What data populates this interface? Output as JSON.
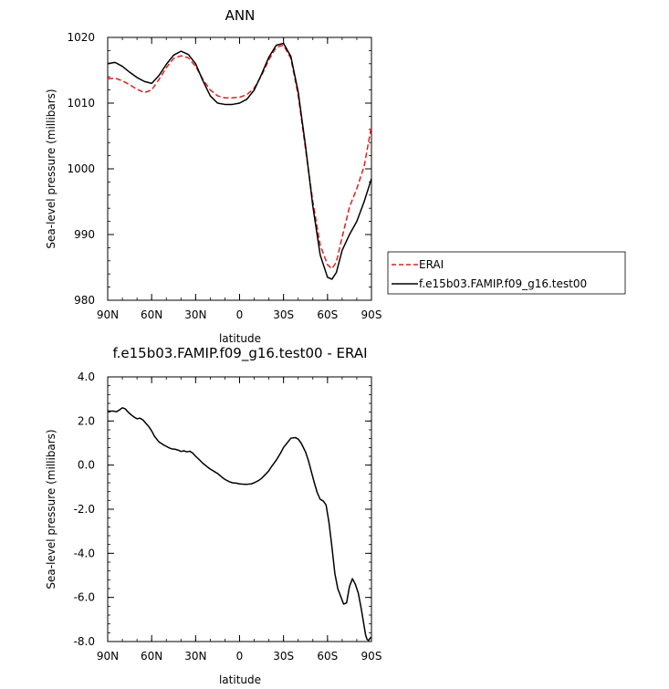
{
  "chart_data": [
    {
      "type": "line",
      "title": "ANN",
      "xlabel": "latitude",
      "ylabel": "Sea-level pressure (millibars)",
      "xlim": [
        90,
        -90
      ],
      "ylim": [
        980,
        1020
      ],
      "x_ticks": [
        90,
        60,
        30,
        0,
        -30,
        -60,
        -90
      ],
      "x_tick_labels": [
        "90N",
        "60N",
        "30N",
        "0",
        "30S",
        "60S",
        "90S"
      ],
      "y_ticks": [
        980,
        990,
        1000,
        1010,
        1020
      ],
      "y_tick_labels": [
        "980",
        "990",
        "1000",
        "1010",
        "1020"
      ],
      "legend_position": "right, outside plot",
      "series": [
        {
          "name": "ERAI",
          "color": "#e0201c",
          "dash": "dashed",
          "x": [
            90,
            85,
            80,
            75,
            70,
            65,
            60,
            55,
            50,
            45,
            40,
            35,
            30,
            25,
            20,
            15,
            10,
            5,
            0,
            -5,
            -10,
            -15,
            -20,
            -25,
            -30,
            -35,
            -40,
            -45,
            -50,
            -55,
            -60,
            -63,
            -66,
            -70,
            -75,
            -80,
            -85,
            -90
          ],
          "y": [
            1013.7,
            1013.8,
            1013.4,
            1012.8,
            1012.1,
            1011.6,
            1012.0,
            1013.6,
            1015.4,
            1016.8,
            1017.2,
            1016.9,
            1015.6,
            1013.6,
            1012.0,
            1011.1,
            1010.8,
            1010.8,
            1010.9,
            1011.3,
            1012.3,
            1014.2,
            1016.6,
            1018.5,
            1018.8,
            1016.8,
            1011.2,
            1003.0,
            995.0,
            988.4,
            985.4,
            984.8,
            985.8,
            989.6,
            994.2,
            997.0,
            1000.4,
            1006.5
          ]
        },
        {
          "name": "f.e15b03.FAMIP.f09_g16.test00",
          "color": "#000000",
          "dash": "solid",
          "x": [
            90,
            85,
            80,
            75,
            70,
            65,
            60,
            55,
            50,
            45,
            40,
            35,
            30,
            25,
            20,
            15,
            10,
            5,
            0,
            -5,
            -10,
            -15,
            -20,
            -25,
            -30,
            -35,
            -40,
            -45,
            -50,
            -55,
            -60,
            -63,
            -66,
            -70,
            -75,
            -80,
            -85,
            -90
          ],
          "y": [
            1016.0,
            1016.2,
            1015.6,
            1014.7,
            1013.9,
            1013.3,
            1013.0,
            1014.2,
            1015.9,
            1017.3,
            1017.9,
            1017.4,
            1016.0,
            1013.4,
            1011.1,
            1010.0,
            1009.8,
            1009.8,
            1010.0,
            1010.6,
            1012.0,
            1014.4,
            1017.0,
            1018.8,
            1019.1,
            1017.1,
            1011.7,
            1003.5,
            994.3,
            986.9,
            983.5,
            983.2,
            984.2,
            987.6,
            990.0,
            992.0,
            995.0,
            998.5
          ]
        }
      ]
    },
    {
      "type": "line",
      "title": "f.e15b03.FAMIP.f09_g16.test00 - ERAI",
      "xlabel": "latitude",
      "ylabel": "Sea-level pressure (millibars)",
      "xlim": [
        90,
        -90
      ],
      "ylim": [
        -8,
        4
      ],
      "x_ticks": [
        90,
        60,
        30,
        0,
        -30,
        -60,
        -90
      ],
      "x_tick_labels": [
        "90N",
        "60N",
        "30N",
        "0",
        "30S",
        "60S",
        "90S"
      ],
      "y_ticks": [
        -8,
        -6,
        -4,
        -2,
        0,
        2,
        4
      ],
      "y_tick_labels": [
        "-8.0",
        "-6.0",
        "-4.0",
        "-2.0",
        "0.0",
        "2.0",
        "4.0"
      ],
      "series": [
        {
          "color": "#000000",
          "dash": "solid",
          "x": [
            90,
            86,
            84,
            82,
            80,
            78,
            76,
            74,
            72,
            70,
            68,
            66,
            64,
            62,
            60,
            58,
            55,
            52,
            50,
            48,
            46,
            44,
            42,
            40,
            38,
            36,
            34,
            32,
            30,
            28,
            25,
            22,
            20,
            17,
            15,
            12,
            10,
            7,
            5,
            2,
            0,
            -2,
            -5,
            -8,
            -10,
            -13,
            -15,
            -18,
            -20,
            -22,
            -25,
            -28,
            -30,
            -33,
            -35,
            -38,
            -40,
            -42,
            -45,
            -47,
            -49,
            -51,
            -53,
            -55,
            -57,
            -59,
            -61,
            -63,
            -65,
            -67,
            -69,
            -71,
            -73,
            -75,
            -77,
            -79,
            -80,
            -81,
            -83,
            -85,
            -86,
            -87,
            -88,
            -89,
            -90
          ],
          "y": [
            2.45,
            2.45,
            2.42,
            2.5,
            2.6,
            2.55,
            2.4,
            2.28,
            2.18,
            2.1,
            2.13,
            2.05,
            1.9,
            1.75,
            1.55,
            1.3,
            1.05,
            0.92,
            0.85,
            0.78,
            0.73,
            0.72,
            0.68,
            0.62,
            0.65,
            0.6,
            0.63,
            0.55,
            0.4,
            0.28,
            0.08,
            -0.08,
            -0.18,
            -0.3,
            -0.38,
            -0.55,
            -0.65,
            -0.75,
            -0.8,
            -0.82,
            -0.85,
            -0.86,
            -0.87,
            -0.85,
            -0.8,
            -0.7,
            -0.6,
            -0.4,
            -0.25,
            -0.05,
            0.22,
            0.55,
            0.8,
            1.05,
            1.22,
            1.25,
            1.18,
            1.0,
            0.6,
            0.2,
            -0.3,
            -0.8,
            -1.25,
            -1.55,
            -1.62,
            -1.8,
            -2.6,
            -3.7,
            -4.9,
            -5.6,
            -5.95,
            -6.3,
            -6.25,
            -5.5,
            -5.15,
            -5.4,
            -5.6,
            -5.8,
            -6.5,
            -7.3,
            -7.7,
            -7.9,
            -7.95,
            -7.85,
            -7.8
          ]
        }
      ]
    }
  ]
}
